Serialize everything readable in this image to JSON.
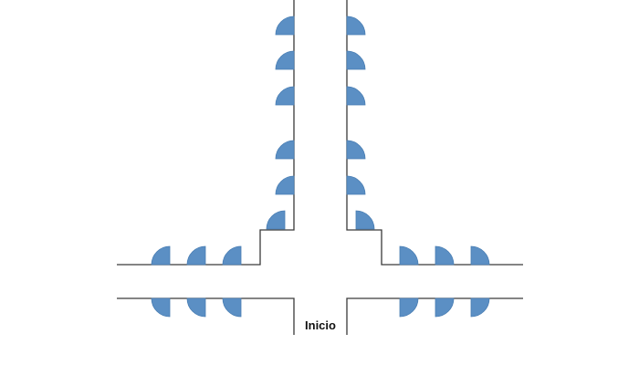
{
  "labels": {
    "start": "Inicio"
  },
  "colors": {
    "door_fill": "#5b8fc4",
    "wall": "#3a3a3a",
    "background": "#ffffff"
  },
  "icons": {
    "door": "quarter-circle-door-icon"
  }
}
